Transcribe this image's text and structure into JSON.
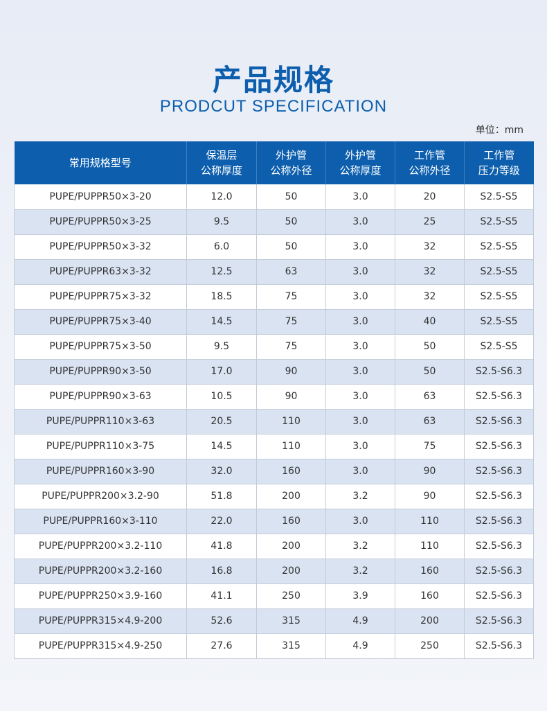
{
  "title_cn": "产品规格",
  "title_en": "PRODCUT SPECIFICATION",
  "unit": "单位：mm",
  "colors": {
    "accent": "#0d5fae",
    "row_alt": "#d9e3f2"
  },
  "table": {
    "headers": [
      [
        "常用规格型号",
        ""
      ],
      [
        "保温层",
        "公称厚度"
      ],
      [
        "外护管",
        "公称外径"
      ],
      [
        "外护管",
        "公称厚度"
      ],
      [
        "工作管",
        "公称外径"
      ],
      [
        "工作管",
        "压力等级"
      ]
    ],
    "rows": [
      [
        "PUPE/PUPPR50×3-20",
        "12.0",
        "50",
        "3.0",
        "20",
        "S2.5-S5"
      ],
      [
        "PUPE/PUPPR50×3-25",
        "9.5",
        "50",
        "3.0",
        "25",
        "S2.5-S5"
      ],
      [
        "PUPE/PUPPR50×3-32",
        "6.0",
        "50",
        "3.0",
        "32",
        "S2.5-S5"
      ],
      [
        "PUPE/PUPPR63×3-32",
        "12.5",
        "63",
        "3.0",
        "32",
        "S2.5-S5"
      ],
      [
        "PUPE/PUPPR75×3-32",
        "18.5",
        "75",
        "3.0",
        "32",
        "S2.5-S5"
      ],
      [
        "PUPE/PUPPR75×3-40",
        "14.5",
        "75",
        "3.0",
        "40",
        "S2.5-S5"
      ],
      [
        "PUPE/PUPPR75×3-50",
        "9.5",
        "75",
        "3.0",
        "50",
        "S2.5-S5"
      ],
      [
        "PUPE/PUPPR90×3-50",
        "17.0",
        "90",
        "3.0",
        "50",
        "S2.5-S6.3"
      ],
      [
        "PUPE/PUPPR90×3-63",
        "10.5",
        "90",
        "3.0",
        "63",
        "S2.5-S6.3"
      ],
      [
        "PUPE/PUPPR110×3-63",
        "20.5",
        "110",
        "3.0",
        "63",
        "S2.5-S6.3"
      ],
      [
        "PUPE/PUPPR110×3-75",
        "14.5",
        "110",
        "3.0",
        "75",
        "S2.5-S6.3"
      ],
      [
        "PUPE/PUPPR160×3-90",
        "32.0",
        "160",
        "3.0",
        "90",
        "S2.5-S6.3"
      ],
      [
        "PUPE/PUPPR200×3.2-90",
        "51.8",
        "200",
        "3.2",
        "90",
        "S2.5-S6.3"
      ],
      [
        "PUPE/PUPPR160×3-110",
        "22.0",
        "160",
        "3.0",
        "110",
        "S2.5-S6.3"
      ],
      [
        "PUPE/PUPPR200×3.2-110",
        "41.8",
        "200",
        "3.2",
        "110",
        "S2.5-S6.3"
      ],
      [
        "PUPE/PUPPR200×3.2-160",
        "16.8",
        "200",
        "3.2",
        "160",
        "S2.5-S6.3"
      ],
      [
        "PUPE/PUPPR250×3.9-160",
        "41.1",
        "250",
        "3.9",
        "160",
        "S2.5-S6.3"
      ],
      [
        "PUPE/PUPPR315×4.9-200",
        "52.6",
        "315",
        "4.9",
        "200",
        "S2.5-S6.3"
      ],
      [
        "PUPE/PUPPR315×4.9-250",
        "27.6",
        "315",
        "4.9",
        "250",
        "S2.5-S6.3"
      ]
    ]
  }
}
